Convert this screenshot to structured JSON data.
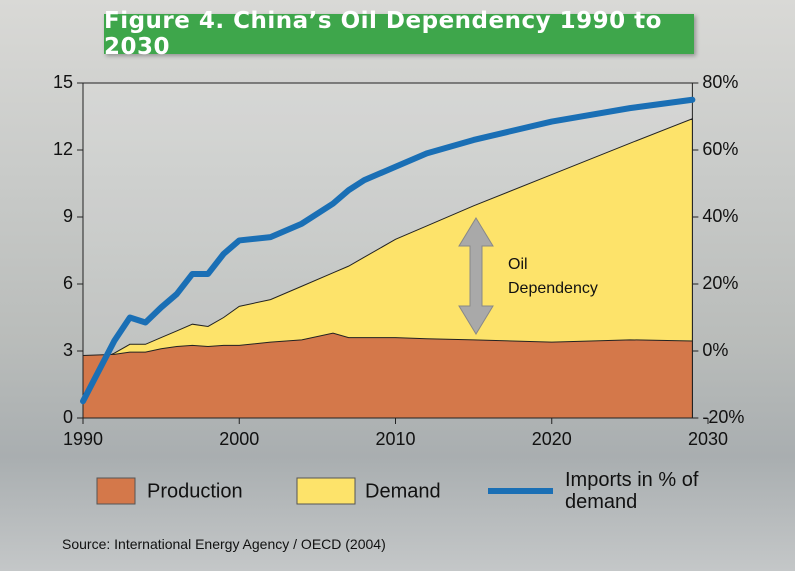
{
  "chart_data": {
    "type": "area",
    "title": "Figure 4. China’s Oil Dependency 1990 to 2030",
    "x": [
      1990,
      1992,
      1993,
      1994,
      1995,
      1996,
      1997,
      1998,
      1999,
      2000,
      2002,
      2004,
      2006,
      2007,
      2008,
      2010,
      2012,
      2015,
      2020,
      2025,
      2029
    ],
    "series": [
      {
        "name": "Demand",
        "type": "area",
        "color": "#fde36a",
        "values": [
          2.3,
          2.9,
          3.3,
          3.3,
          3.6,
          3.9,
          4.2,
          4.1,
          4.5,
          5.0,
          5.3,
          5.9,
          6.5,
          6.8,
          7.2,
          8.0,
          8.6,
          9.5,
          10.9,
          12.3,
          13.4
        ]
      },
      {
        "name": "Production",
        "type": "area",
        "color": "#d4784a",
        "values": [
          2.8,
          2.85,
          2.95,
          2.95,
          3.1,
          3.2,
          3.25,
          3.2,
          3.25,
          3.25,
          3.4,
          3.5,
          3.8,
          3.6,
          3.6,
          3.6,
          3.55,
          3.5,
          3.4,
          3.5,
          3.45
        ]
      },
      {
        "name": "Imports in % of demand",
        "type": "line",
        "axis": "y2",
        "color": "#1a6fb5",
        "values": [
          -15,
          3,
          10,
          8.5,
          13,
          17,
          23,
          23,
          29,
          33,
          34,
          38,
          44,
          48,
          51,
          55,
          59,
          63,
          68.5,
          72.5,
          75
        ]
      }
    ],
    "xlim": [
      1990,
      2030
    ],
    "xticks": [
      1990,
      2000,
      2010,
      2020,
      2030
    ],
    "ylim": [
      0,
      15
    ],
    "yticks": [
      0,
      3,
      6,
      9,
      12,
      15
    ],
    "y2lim": [
      -20,
      80
    ],
    "y2ticks": [
      {
        "value": -20,
        "label": "-20%"
      },
      {
        "value": 0,
        "label": "0%"
      },
      {
        "value": 20,
        "label": "20%"
      },
      {
        "value": 40,
        "label": "40%"
      },
      {
        "value": 60,
        "label": "60%"
      },
      {
        "value": 80,
        "label": "80%"
      }
    ],
    "annotation": [
      "Oil",
      "Dependency"
    ],
    "source": "Source: International Energy Agency / OECD (2004)"
  }
}
